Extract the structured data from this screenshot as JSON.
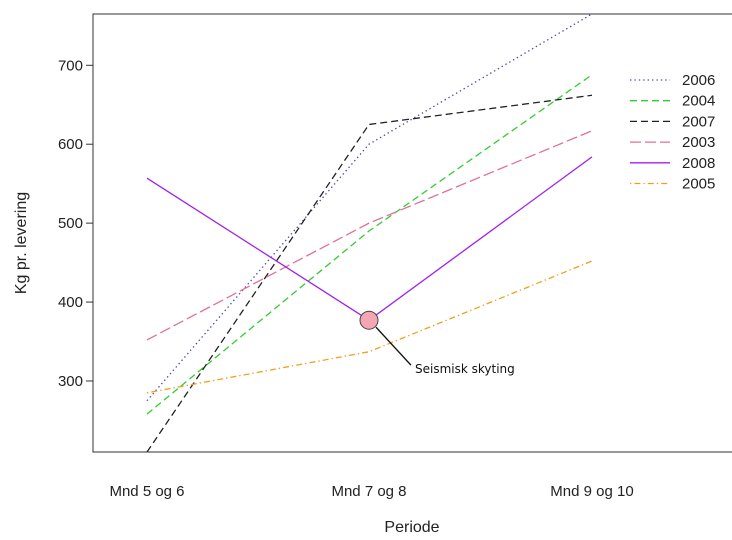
{
  "chart_data": {
    "type": "line",
    "title": "",
    "xlabel": "Periode",
    "ylabel": "Kg pr. levering",
    "categories": [
      "Mnd 5 og 6",
      "Mnd 7 og 8",
      "Mnd 9 og 10"
    ],
    "ylim": [
      210,
      765
    ],
    "yticks": [
      300,
      400,
      500,
      600,
      700
    ],
    "grid": false,
    "legend_position": "right",
    "series": [
      {
        "name": "2006",
        "color": "#4a4aa8",
        "dash": "dotted",
        "values": [
          275,
          600,
          765
        ]
      },
      {
        "name": "2004",
        "color": "#33cc33",
        "dash": "dashed",
        "values": [
          258,
          490,
          688
        ]
      },
      {
        "name": "2007",
        "color": "#222222",
        "dash": "dashed",
        "values": [
          210,
          625,
          662
        ]
      },
      {
        "name": "2003",
        "color": "#e0709a",
        "dash": "longdash",
        "values": [
          352,
          500,
          617
        ]
      },
      {
        "name": "2008",
        "color": "#a020f0",
        "dash": "solid",
        "values": [
          557,
          377,
          584
        ]
      },
      {
        "name": "2005",
        "color": "#f0a020",
        "dash": "dotdash",
        "values": [
          285,
          337,
          452
        ]
      }
    ],
    "annotation": {
      "text": "Seismisk skyting",
      "category_index": 1,
      "value": 377,
      "marker_color": "#f4a6b4"
    }
  }
}
